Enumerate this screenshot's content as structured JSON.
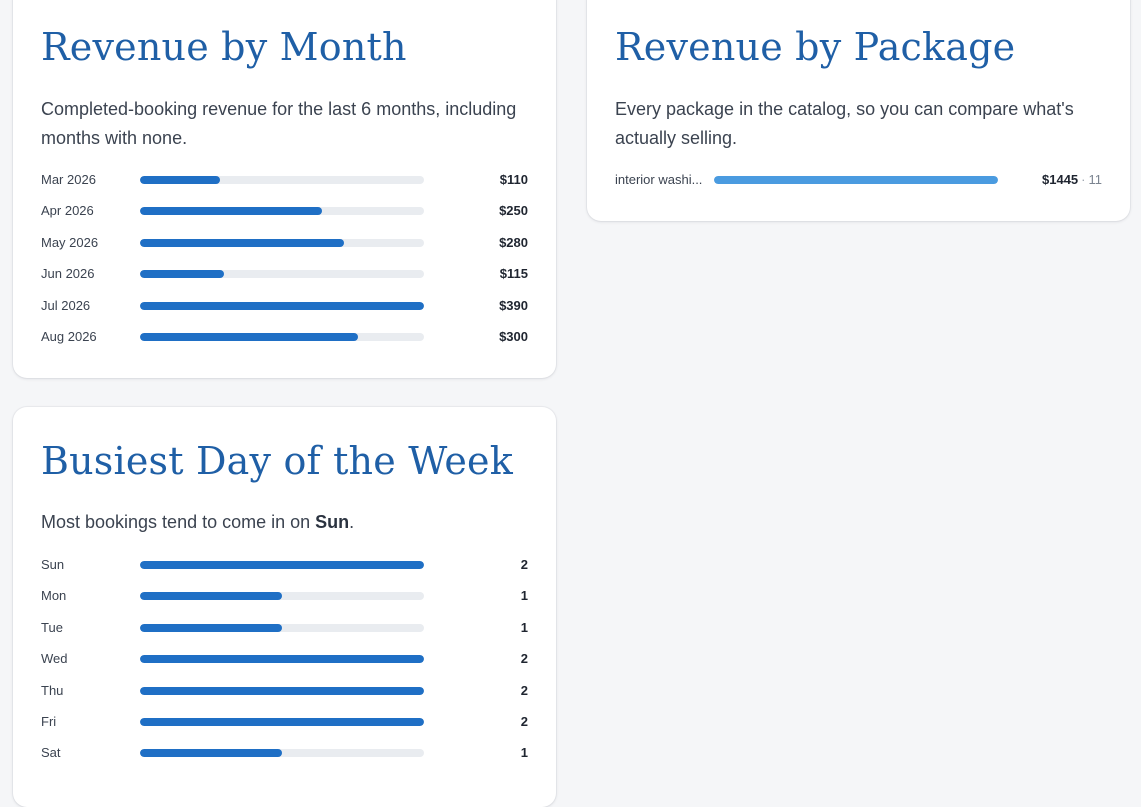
{
  "colors": {
    "title": "#1f5fa6",
    "bar_fill": "#1f6fc5",
    "bar_fill_package": "#4a9be0",
    "bar_track": "#e9ecf0",
    "background": "#f5f6f8"
  },
  "revenue_by_month": {
    "title": "Revenue by Month",
    "description": "Completed-booking revenue for the last 6 months, including months with none.",
    "max": 390,
    "rows": [
      {
        "label": "Mar 2026",
        "value": 110,
        "display": "$110"
      },
      {
        "label": "Apr 2026",
        "value": 250,
        "display": "$250"
      },
      {
        "label": "May 2026",
        "value": 280,
        "display": "$280"
      },
      {
        "label": "Jun 2026",
        "value": 115,
        "display": "$115"
      },
      {
        "label": "Jul 2026",
        "value": 390,
        "display": "$390"
      },
      {
        "label": "Aug 2026",
        "value": 300,
        "display": "$300"
      }
    ]
  },
  "revenue_by_package": {
    "title": "Revenue by Package",
    "description": "Every package in the catalog, so you can compare what's actually selling.",
    "max": 1445,
    "rows": [
      {
        "label": "interior washi...",
        "value": 1445,
        "display": "$1445",
        "separator": "·",
        "count": "11"
      }
    ]
  },
  "busiest_day": {
    "title": "Busiest Day of the Week",
    "description_prefix": "Most bookings tend to come in on ",
    "description_day": "Sun",
    "description_suffix": ".",
    "max": 2,
    "rows": [
      {
        "label": "Sun",
        "value": 2,
        "display": "2"
      },
      {
        "label": "Mon",
        "value": 1,
        "display": "1"
      },
      {
        "label": "Tue",
        "value": 1,
        "display": "1"
      },
      {
        "label": "Wed",
        "value": 2,
        "display": "2"
      },
      {
        "label": "Thu",
        "value": 2,
        "display": "2"
      },
      {
        "label": "Fri",
        "value": 2,
        "display": "2"
      },
      {
        "label": "Sat",
        "value": 1,
        "display": "1"
      }
    ]
  }
}
